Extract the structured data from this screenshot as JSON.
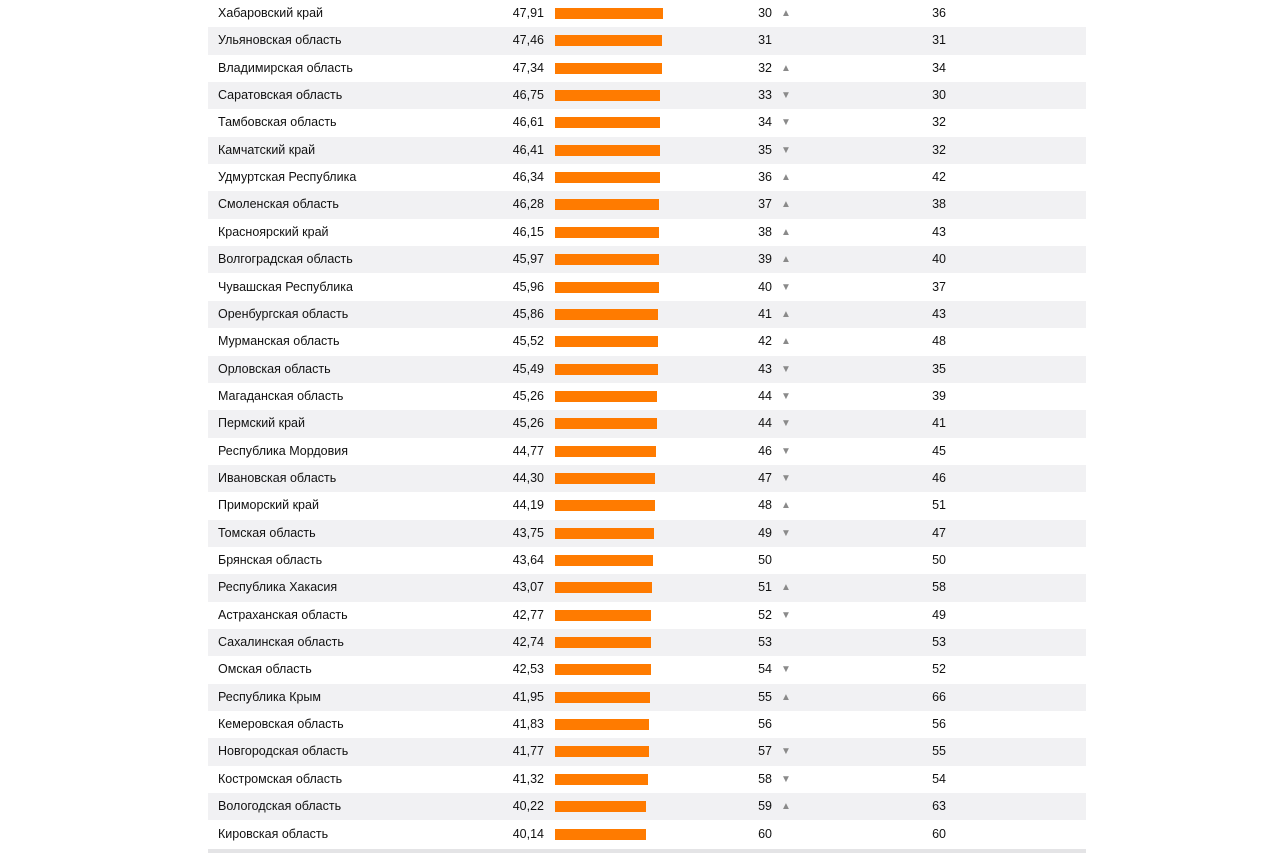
{
  "chart_data": {
    "type": "table",
    "rows": [
      {
        "region": "Хабаровский край",
        "score": "47,91",
        "rank": "30",
        "trend": "up",
        "prev_rank": "36"
      },
      {
        "region": "Ульяновская область",
        "score": "47,46",
        "rank": "31",
        "trend": "",
        "prev_rank": "31"
      },
      {
        "region": "Владимирская область",
        "score": "47,34",
        "rank": "32",
        "trend": "up",
        "prev_rank": "34"
      },
      {
        "region": "Саратовская область",
        "score": "46,75",
        "rank": "33",
        "trend": "down",
        "prev_rank": "30"
      },
      {
        "region": "Тамбовская область",
        "score": "46,61",
        "rank": "34",
        "trend": "down",
        "prev_rank": "32"
      },
      {
        "region": "Камчатский край",
        "score": "46,41",
        "rank": "35",
        "trend": "down",
        "prev_rank": "32"
      },
      {
        "region": "Удмуртская Республика",
        "score": "46,34",
        "rank": "36",
        "trend": "up",
        "prev_rank": "42"
      },
      {
        "region": "Смоленская область",
        "score": "46,28",
        "rank": "37",
        "trend": "up",
        "prev_rank": "38"
      },
      {
        "region": "Красноярский край",
        "score": "46,15",
        "rank": "38",
        "trend": "up",
        "prev_rank": "43"
      },
      {
        "region": "Волгоградская область",
        "score": "45,97",
        "rank": "39",
        "trend": "up",
        "prev_rank": "40"
      },
      {
        "region": "Чувашская Республика",
        "score": "45,96",
        "rank": "40",
        "trend": "down",
        "prev_rank": "37"
      },
      {
        "region": "Оренбургская область",
        "score": "45,86",
        "rank": "41",
        "trend": "up",
        "prev_rank": "43"
      },
      {
        "region": "Мурманская область",
        "score": "45,52",
        "rank": "42",
        "trend": "up",
        "prev_rank": "48"
      },
      {
        "region": "Орловская область",
        "score": "45,49",
        "rank": "43",
        "trend": "down",
        "prev_rank": "35"
      },
      {
        "region": "Магаданская область",
        "score": "45,26",
        "rank": "44",
        "trend": "down",
        "prev_rank": "39"
      },
      {
        "region": "Пермский край",
        "score": "45,26",
        "rank": "44",
        "trend": "down",
        "prev_rank": "41"
      },
      {
        "region": "Республика Мордовия",
        "score": "44,77",
        "rank": "46",
        "trend": "down",
        "prev_rank": "45"
      },
      {
        "region": "Ивановская область",
        "score": "44,30",
        "rank": "47",
        "trend": "down",
        "prev_rank": "46"
      },
      {
        "region": "Приморский край",
        "score": "44,19",
        "rank": "48",
        "trend": "up",
        "prev_rank": "51"
      },
      {
        "region": "Томская область",
        "score": "43,75",
        "rank": "49",
        "trend": "down",
        "prev_rank": "47"
      },
      {
        "region": "Брянская область",
        "score": "43,64",
        "rank": "50",
        "trend": "",
        "prev_rank": "50"
      },
      {
        "region": "Республика Хакасия",
        "score": "43,07",
        "rank": "51",
        "trend": "up",
        "prev_rank": "58"
      },
      {
        "region": "Астраханская область",
        "score": "42,77",
        "rank": "52",
        "trend": "down",
        "prev_rank": "49"
      },
      {
        "region": "Сахалинская область",
        "score": "42,74",
        "rank": "53",
        "trend": "",
        "prev_rank": "53"
      },
      {
        "region": "Омская область",
        "score": "42,53",
        "rank": "54",
        "trend": "down",
        "prev_rank": "52"
      },
      {
        "region": "Республика Крым",
        "score": "41,95",
        "rank": "55",
        "trend": "up",
        "prev_rank": "66"
      },
      {
        "region": "Кемеровская область",
        "score": "41,83",
        "rank": "56",
        "trend": "",
        "prev_rank": "56"
      },
      {
        "region": "Новгородская область",
        "score": "41,77",
        "rank": "57",
        "trend": "down",
        "prev_rank": "55"
      },
      {
        "region": "Костромская область",
        "score": "41,32",
        "rank": "58",
        "trend": "down",
        "prev_rank": "54"
      },
      {
        "region": "Вологодская область",
        "score": "40,22",
        "rank": "59",
        "trend": "up",
        "prev_rank": "63"
      },
      {
        "region": "Кировская область",
        "score": "40,14",
        "rank": "60",
        "trend": "",
        "prev_rank": "60"
      }
    ],
    "bar_color": "#ff7b00",
    "row_alt_color": "#f1f1f3",
    "trend_color": "#8a8a8a",
    "trend_icons": {
      "up": "▲",
      "down": "▼"
    }
  }
}
